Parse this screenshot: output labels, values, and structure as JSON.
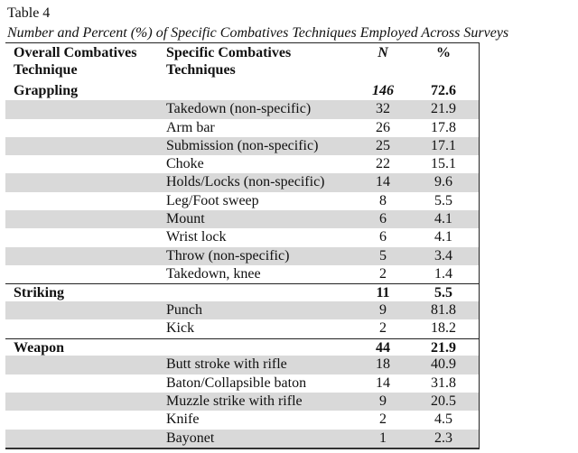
{
  "table_label": "Table 4",
  "table_title": "Number and Percent (%) of Specific Combatives Techniques Employed Across Surveys",
  "headers": {
    "overall_line1": "Overall Combatives",
    "overall_line2": "Technique",
    "specific_line1": "Specific Combatives",
    "specific_line2": "Techniques",
    "n": "N",
    "pct": "%"
  },
  "rows": [
    {
      "category": "Grappling",
      "technique": "",
      "n": "146",
      "pct": "72.6",
      "type": "cat",
      "n_italic": true
    },
    {
      "category": "",
      "technique": "Takedown (non-specific)",
      "n": "32",
      "pct": "21.9",
      "shade": true
    },
    {
      "category": "",
      "technique": "Arm bar",
      "n": "26",
      "pct": "17.8"
    },
    {
      "category": "",
      "technique": "Submission (non-specific)",
      "n": "25",
      "pct": "17.1",
      "shade": true
    },
    {
      "category": "",
      "technique": "Choke",
      "n": "22",
      "pct": "15.1"
    },
    {
      "category": "",
      "technique": "Holds/Locks (non-specific)",
      "n": "14",
      "pct": "9.6",
      "shade": true
    },
    {
      "category": "",
      "technique": "Leg/Foot sweep",
      "n": "8",
      "pct": "5.5"
    },
    {
      "category": "",
      "technique": "Mount",
      "n": "6",
      "pct": "4.1",
      "shade": true
    },
    {
      "category": "",
      "technique": "Wrist lock",
      "n": "6",
      "pct": "4.1"
    },
    {
      "category": "",
      "technique": "Throw (non-specific)",
      "n": "5",
      "pct": "3.4",
      "shade": true
    },
    {
      "category": "",
      "technique": "Takedown, knee",
      "n": "2",
      "pct": "1.4"
    },
    {
      "category": "Striking",
      "technique": "",
      "n": "11",
      "pct": "5.5",
      "type": "cat",
      "sep": true
    },
    {
      "category": "",
      "technique": "Punch",
      "n": "9",
      "pct": "81.8",
      "shade": true
    },
    {
      "category": "",
      "technique": "Kick",
      "n": "2",
      "pct": "18.2"
    },
    {
      "category": "Weapon",
      "technique": "",
      "n": "44",
      "pct": "21.9",
      "type": "cat",
      "sep": true
    },
    {
      "category": "",
      "technique": "Butt stroke with rifle",
      "n": "18",
      "pct": "40.9",
      "shade": true
    },
    {
      "category": "",
      "technique": "Baton/Collapsible baton",
      "n": "14",
      "pct": "31.8"
    },
    {
      "category": "",
      "technique": "Muzzle strike with rifle",
      "n": "9",
      "pct": "20.5",
      "shade": true
    },
    {
      "category": "",
      "technique": "Knife",
      "n": "2",
      "pct": "4.5"
    },
    {
      "category": "",
      "technique": "Bayonet",
      "n": "1",
      "pct": "2.3",
      "shade": true
    }
  ],
  "colors": {
    "shade": "#d9d9d9",
    "text": "#111111"
  }
}
